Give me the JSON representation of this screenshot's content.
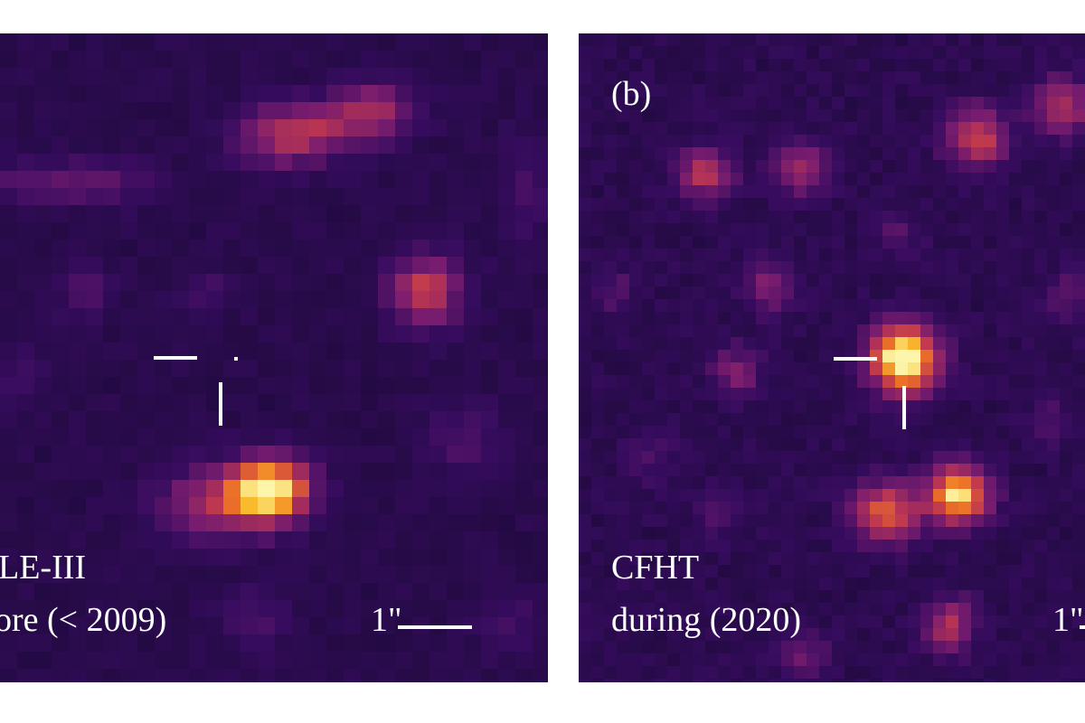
{
  "panels": [
    {
      "id": "a",
      "label_lines": [
        "LE-III",
        "ore (< 2009)"
      ],
      "scale_bar": "1\""
    },
    {
      "id": "b",
      "tag": "(b)",
      "label_lines": [
        "CFHT",
        "during (2020)"
      ],
      "scale_bar": "1\""
    }
  ],
  "colors": {
    "background": "#14092e",
    "colormap": "inferno",
    "marker": "#ffffff"
  }
}
